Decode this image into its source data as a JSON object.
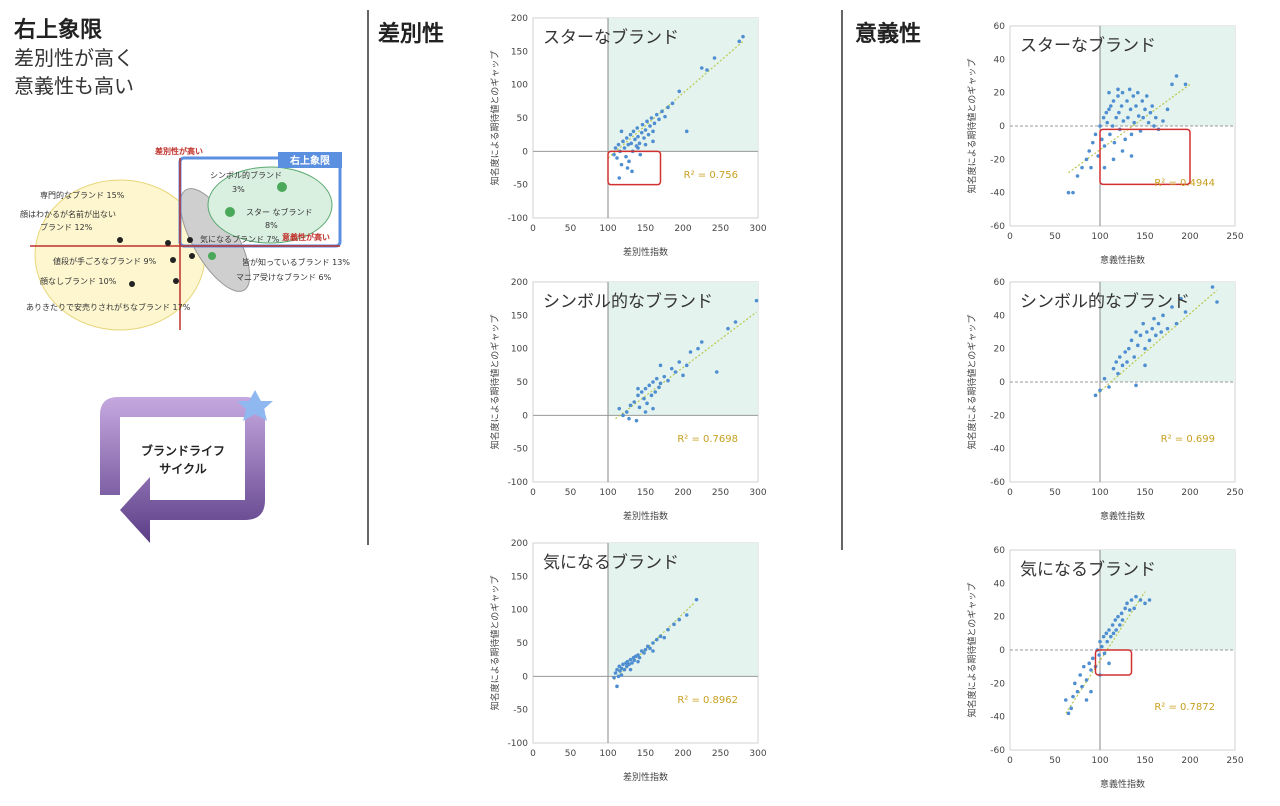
{
  "left_panel": {
    "title": "右上象限",
    "subtitle_line1": "差別性が高く",
    "subtitle_line2": "意義性も高い",
    "quadrant": {
      "y_axis_label": "差別性が高い",
      "x_axis_label": "意義性が高い",
      "box_label": "右上象限",
      "items": [
        {
          "label": "シンボル的ブランド",
          "value": "3%"
        },
        {
          "label": "スター なブランド",
          "value": "8%"
        },
        {
          "label": "気になるブランド 7%"
        },
        {
          "label": "専門的なブランド 15%"
        },
        {
          "label": "顔はわかるが名前が出ない"
        },
        {
          "label": "ブランド 12%"
        },
        {
          "label": "値段が手ごろなブランド 9%"
        },
        {
          "label": "顔なしブランド 10%"
        },
        {
          "label": "ありきたりで安売りされがちなブランド 17%"
        },
        {
          "label": "皆が知っているブランド 13%"
        },
        {
          "label": "マニア受けなブランド 6%"
        }
      ]
    },
    "cycle": {
      "line1": "ブランドライフ",
      "line2": "サイクル"
    },
    "colors": {
      "axis": "#c0302a",
      "box": "#5b8fe0",
      "star": "#8fb8f0",
      "cycle": "#7a55a8"
    }
  },
  "sections": {
    "differentiation": "差別性",
    "significance": "意義性"
  },
  "chart_data": [
    {
      "type": "scatter",
      "title": "スターなブランド",
      "xlabel": "差別性指数",
      "ylabel": "知名度による期待値とのギャップ",
      "xlim": [
        0,
        300
      ],
      "ylim": [
        -100,
        200
      ],
      "xticks": [
        0,
        50,
        100,
        150,
        200,
        250,
        300
      ],
      "yticks": [
        -100,
        -50,
        0,
        50,
        100,
        150,
        200
      ],
      "r2": "R² = 0.756",
      "shade_from": [
        100,
        0
      ],
      "highlight_box": [
        100,
        170,
        -50,
        0
      ],
      "trend": [
        [
          100,
          -10
        ],
        [
          280,
          165
        ]
      ],
      "points": [
        [
          108,
          -5
        ],
        [
          110,
          5
        ],
        [
          112,
          -10
        ],
        [
          114,
          10
        ],
        [
          116,
          0
        ],
        [
          118,
          -20
        ],
        [
          120,
          15
        ],
        [
          122,
          5
        ],
        [
          124,
          -8
        ],
        [
          125,
          20
        ],
        [
          127,
          10
        ],
        [
          128,
          -15
        ],
        [
          130,
          25
        ],
        [
          131,
          12
        ],
        [
          133,
          0
        ],
        [
          134,
          30
        ],
        [
          136,
          18
        ],
        [
          138,
          8
        ],
        [
          139,
          35
        ],
        [
          140,
          22
        ],
        [
          142,
          12
        ],
        [
          143,
          -5
        ],
        [
          145,
          28
        ],
        [
          146,
          40
        ],
        [
          148,
          20
        ],
        [
          150,
          32
        ],
        [
          152,
          45
        ],
        [
          154,
          25
        ],
        [
          156,
          38
        ],
        [
          158,
          50
        ],
        [
          160,
          30
        ],
        [
          162,
          42
        ],
        [
          165,
          55
        ],
        [
          168,
          48
        ],
        [
          172,
          60
        ],
        [
          176,
          52
        ],
        [
          180,
          66
        ],
        [
          186,
          72
        ],
        [
          195,
          90
        ],
        [
          205,
          30
        ],
        [
          225,
          125
        ],
        [
          232,
          122
        ],
        [
          242,
          140
        ],
        [
          275,
          165
        ],
        [
          280,
          172
        ],
        [
          118,
          30
        ],
        [
          126,
          -25
        ],
        [
          132,
          -30
        ],
        [
          115,
          -40
        ],
        [
          140,
          5
        ],
        [
          150,
          10
        ],
        [
          160,
          15
        ]
      ]
    },
    {
      "type": "scatter",
      "title": "シンボル的なブランド",
      "xlabel": "差別性指数",
      "ylabel": "知名度による期待値とのギャップ",
      "xlim": [
        0,
        300
      ],
      "ylim": [
        -100,
        200
      ],
      "xticks": [
        0,
        50,
        100,
        150,
        200,
        250,
        300
      ],
      "yticks": [
        -100,
        -50,
        0,
        50,
        100,
        150,
        200
      ],
      "r2": "R² = 0.7698",
      "shade_from": [
        100,
        0
      ],
      "trend": [
        [
          110,
          -5
        ],
        [
          298,
          155
        ]
      ],
      "points": [
        [
          115,
          10
        ],
        [
          120,
          0
        ],
        [
          125,
          5
        ],
        [
          128,
          -5
        ],
        [
          130,
          15
        ],
        [
          135,
          20
        ],
        [
          138,
          -8
        ],
        [
          140,
          30
        ],
        [
          142,
          12
        ],
        [
          145,
          35
        ],
        [
          148,
          25
        ],
        [
          150,
          40
        ],
        [
          152,
          18
        ],
        [
          155,
          45
        ],
        [
          158,
          30
        ],
        [
          160,
          50
        ],
        [
          163,
          35
        ],
        [
          165,
          55
        ],
        [
          168,
          42
        ],
        [
          170,
          48
        ],
        [
          175,
          58
        ],
        [
          180,
          52
        ],
        [
          185,
          70
        ],
        [
          190,
          65
        ],
        [
          195,
          80
        ],
        [
          200,
          60
        ],
        [
          205,
          75
        ],
        [
          210,
          95
        ],
        [
          220,
          100
        ],
        [
          225,
          110
        ],
        [
          245,
          65
        ],
        [
          260,
          130
        ],
        [
          270,
          140
        ],
        [
          298,
          172
        ],
        [
          150,
          5
        ],
        [
          160,
          10
        ],
        [
          140,
          40
        ],
        [
          170,
          75
        ]
      ]
    },
    {
      "type": "scatter",
      "title": "気になるブランド",
      "xlabel": "差別性指数",
      "ylabel": "知名度による期待値とのギャップ",
      "xlim": [
        0,
        300
      ],
      "ylim": [
        -100,
        200
      ],
      "xticks": [
        0,
        50,
        100,
        150,
        200,
        250,
        300
      ],
      "yticks": [
        -100,
        -50,
        0,
        50,
        100,
        150,
        200
      ],
      "r2": "R² = 0.8962",
      "shade_from": [
        100,
        0
      ],
      "trend": [
        [
          108,
          -5
        ],
        [
          215,
          110
        ]
      ],
      "points": [
        [
          108,
          -2
        ],
        [
          110,
          5
        ],
        [
          112,
          10
        ],
        [
          114,
          0
        ],
        [
          115,
          15
        ],
        [
          116,
          8
        ],
        [
          118,
          12
        ],
        [
          120,
          18
        ],
        [
          122,
          10
        ],
        [
          124,
          20
        ],
        [
          125,
          15
        ],
        [
          126,
          22
        ],
        [
          128,
          18
        ],
        [
          130,
          25
        ],
        [
          132,
          20
        ],
        [
          134,
          28
        ],
        [
          135,
          24
        ],
        [
          137,
          30
        ],
        [
          140,
          32
        ],
        [
          142,
          28
        ],
        [
          145,
          38
        ],
        [
          148,
          35
        ],
        [
          150,
          40
        ],
        [
          153,
          45
        ],
        [
          156,
          42
        ],
        [
          160,
          50
        ],
        [
          165,
          55
        ],
        [
          170,
          60
        ],
        [
          175,
          58
        ],
        [
          180,
          70
        ],
        [
          188,
          78
        ],
        [
          195,
          85
        ],
        [
          205,
          92
        ],
        [
          218,
          115
        ],
        [
          112,
          -15
        ],
        [
          118,
          2
        ],
        [
          130,
          10
        ],
        [
          140,
          22
        ],
        [
          160,
          38
        ]
      ]
    },
    {
      "type": "scatter",
      "title": "スターなブランド",
      "xlabel": "意義性指数",
      "ylabel": "知名度による期待値とのギャップ",
      "xlim": [
        0,
        250
      ],
      "ylim": [
        -60,
        60
      ],
      "xticks": [
        0,
        50,
        100,
        150,
        200,
        250
      ],
      "yticks": [
        -60,
        -40,
        -20,
        0,
        20,
        40,
        60
      ],
      "r2": "R² = 0.4944",
      "shade_from": [
        100,
        0
      ],
      "highlight_box": [
        100,
        200,
        -35,
        -2
      ],
      "trend": [
        [
          65,
          -28
        ],
        [
          200,
          25
        ]
      ],
      "points": [
        [
          65,
          -40
        ],
        [
          70,
          -40
        ],
        [
          75,
          -30
        ],
        [
          80,
          -25
        ],
        [
          85,
          -20
        ],
        [
          88,
          -15
        ],
        [
          90,
          -25
        ],
        [
          92,
          -10
        ],
        [
          95,
          -5
        ],
        [
          98,
          -18
        ],
        [
          100,
          0
        ],
        [
          102,
          -8
        ],
        [
          104,
          5
        ],
        [
          105,
          -12
        ],
        [
          107,
          8
        ],
        [
          108,
          2
        ],
        [
          110,
          10
        ],
        [
          111,
          -5
        ],
        [
          112,
          12
        ],
        [
          114,
          0
        ],
        [
          115,
          15
        ],
        [
          116,
          -10
        ],
        [
          118,
          5
        ],
        [
          120,
          18
        ],
        [
          121,
          8
        ],
        [
          122,
          -2
        ],
        [
          124,
          12
        ],
        [
          125,
          20
        ],
        [
          126,
          3
        ],
        [
          128,
          -8
        ],
        [
          130,
          15
        ],
        [
          131,
          5
        ],
        [
          133,
          22
        ],
        [
          134,
          10
        ],
        [
          135,
          -5
        ],
        [
          137,
          18
        ],
        [
          138,
          2
        ],
        [
          140,
          12
        ],
        [
          142,
          20
        ],
        [
          143,
          6
        ],
        [
          145,
          -3
        ],
        [
          147,
          15
        ],
        [
          148,
          5
        ],
        [
          150,
          10
        ],
        [
          152,
          18
        ],
        [
          154,
          2
        ],
        [
          156,
          8
        ],
        [
          158,
          12
        ],
        [
          160,
          0
        ],
        [
          162,
          5
        ],
        [
          165,
          -2
        ],
        [
          170,
          3
        ],
        [
          175,
          10
        ],
        [
          180,
          25
        ],
        [
          185,
          30
        ],
        [
          195,
          25
        ],
        [
          105,
          -25
        ],
        [
          115,
          -20
        ],
        [
          125,
          -15
        ],
        [
          135,
          -18
        ],
        [
          110,
          20
        ],
        [
          120,
          22
        ]
      ]
    },
    {
      "type": "scatter",
      "title": "シンボル的なブランド",
      "xlabel": "意義性指数",
      "ylabel": "知名度による期待値とのギャップ",
      "xlim": [
        0,
        250
      ],
      "ylim": [
        -60,
        60
      ],
      "xticks": [
        0,
        50,
        100,
        150,
        200,
        250
      ],
      "yticks": [
        -60,
        -40,
        -20,
        0,
        20,
        40,
        60
      ],
      "r2": "R² = 0.699",
      "shade_from": [
        100,
        0
      ],
      "trend": [
        [
          95,
          -8
        ],
        [
          230,
          55
        ]
      ],
      "points": [
        [
          95,
          -8
        ],
        [
          100,
          -5
        ],
        [
          105,
          2
        ],
        [
          110,
          -3
        ],
        [
          115,
          8
        ],
        [
          118,
          12
        ],
        [
          120,
          5
        ],
        [
          122,
          15
        ],
        [
          125,
          10
        ],
        [
          128,
          18
        ],
        [
          130,
          12
        ],
        [
          132,
          20
        ],
        [
          135,
          25
        ],
        [
          138,
          15
        ],
        [
          140,
          30
        ],
        [
          142,
          22
        ],
        [
          145,
          28
        ],
        [
          148,
          35
        ],
        [
          150,
          20
        ],
        [
          152,
          30
        ],
        [
          155,
          25
        ],
        [
          158,
          32
        ],
        [
          160,
          38
        ],
        [
          162,
          28
        ],
        [
          165,
          35
        ],
        [
          168,
          30
        ],
        [
          170,
          40
        ],
        [
          175,
          32
        ],
        [
          180,
          45
        ],
        [
          185,
          35
        ],
        [
          190,
          50
        ],
        [
          195,
          42
        ],
        [
          225,
          57
        ],
        [
          230,
          48
        ],
        [
          140,
          -2
        ],
        [
          150,
          10
        ]
      ]
    },
    {
      "type": "scatter",
      "title": "気になるブランド",
      "xlabel": "意義性指数",
      "ylabel": "知名度による期待値とのギャップ",
      "xlim": [
        0,
        250
      ],
      "ylim": [
        -60,
        60
      ],
      "xticks": [
        0,
        50,
        100,
        150,
        200,
        250
      ],
      "yticks": [
        -60,
        -40,
        -20,
        0,
        20,
        40,
        60
      ],
      "r2": "R² = 0.7872",
      "shade_from": [
        100,
        0
      ],
      "highlight_box": [
        95,
        135,
        -15,
        0
      ],
      "trend": [
        [
          62,
          -38
        ],
        [
          150,
          35
        ]
      ],
      "points": [
        [
          62,
          -30
        ],
        [
          65,
          -38
        ],
        [
          68,
          -35
        ],
        [
          70,
          -28
        ],
        [
          72,
          -20
        ],
        [
          75,
          -25
        ],
        [
          78,
          -15
        ],
        [
          80,
          -22
        ],
        [
          82,
          -10
        ],
        [
          85,
          -18
        ],
        [
          88,
          -8
        ],
        [
          90,
          -12
        ],
        [
          92,
          -5
        ],
        [
          95,
          -10
        ],
        [
          97,
          0
        ],
        [
          99,
          -3
        ],
        [
          100,
          5
        ],
        [
          102,
          2
        ],
        [
          104,
          8
        ],
        [
          105,
          -2
        ],
        [
          107,
          10
        ],
        [
          108,
          5
        ],
        [
          110,
          12
        ],
        [
          112,
          8
        ],
        [
          114,
          15
        ],
        [
          115,
          10
        ],
        [
          117,
          18
        ],
        [
          118,
          12
        ],
        [
          120,
          20
        ],
        [
          122,
          15
        ],
        [
          124,
          22
        ],
        [
          125,
          18
        ],
        [
          128,
          25
        ],
        [
          130,
          28
        ],
        [
          133,
          24
        ],
        [
          135,
          30
        ],
        [
          138,
          25
        ],
        [
          140,
          32
        ],
        [
          145,
          30
        ],
        [
          150,
          28
        ],
        [
          155,
          30
        ],
        [
          90,
          -25
        ],
        [
          85,
          -30
        ],
        [
          100,
          -15
        ],
        [
          110,
          -8
        ]
      ]
    }
  ]
}
